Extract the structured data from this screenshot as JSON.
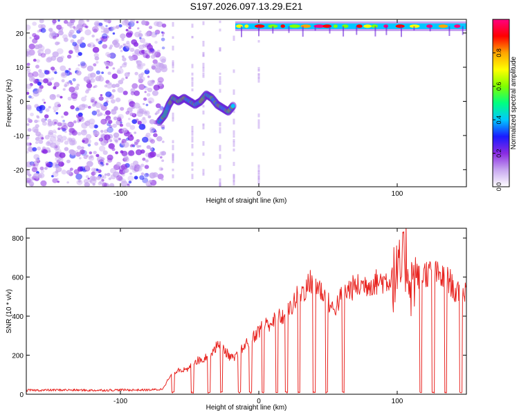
{
  "title": "S197.2026.097.13.29.E21",
  "chart_data": [
    {
      "type": "heatmap",
      "xlabel": "Height of straight line (km)",
      "ylabel": "Frequency (Hz)",
      "xlim": [
        -168,
        150
      ],
      "ylim": [
        -25,
        24
      ],
      "xticks": [
        -100,
        0,
        100
      ],
      "yticks": [
        -20,
        -10,
        0,
        10,
        20
      ],
      "colorbar": {
        "label": "Normalized spectral amplitude",
        "range": [
          0,
          1
        ],
        "ticks": [
          "0.0",
          "0.2",
          "0.4",
          "0.6",
          "0.8"
        ],
        "colors": [
          "#ffffff",
          "#c8a8f0",
          "#8a2be2",
          "#1a1aff",
          "#00c8ff",
          "#00ff80",
          "#80ff00",
          "#ffff00",
          "#ffa500",
          "#ff0000",
          "#ff0080"
        ]
      },
      "features": {
        "noise_region_x": [
          -168,
          -70
        ],
        "tracked_line": {
          "x": [
            -72,
            -68,
            -65,
            -62,
            -58,
            -54,
            -50,
            -46,
            -42,
            -38,
            -34,
            -30,
            -26,
            -22,
            -18
          ],
          "y": [
            -6,
            -4,
            -1,
            1,
            0,
            1,
            0,
            -1,
            0,
            2,
            1,
            -1,
            -2,
            -3,
            -1
          ]
        },
        "upper_band": {
          "x": [
            -17,
            150
          ],
          "y": 22
        }
      }
    },
    {
      "type": "line",
      "xlabel": "Height of straight line (km)",
      "ylabel": "SNR (10 * v/v)",
      "xlim": [
        -168,
        150
      ],
      "ylim": [
        0,
        850
      ],
      "xticks": [
        -100,
        0,
        100
      ],
      "yticks": [
        0,
        200,
        400,
        600,
        800
      ],
      "color": "#e8231f",
      "profile": {
        "x": [
          -168,
          -140,
          -120,
          -100,
          -90,
          -80,
          -70,
          -64,
          -58,
          -52,
          -46,
          -40,
          -34,
          -28,
          -22,
          -18,
          -14,
          -10,
          -6,
          -2,
          2,
          6,
          10,
          14,
          18,
          22,
          26,
          30,
          34,
          38,
          42,
          46,
          50,
          54,
          58,
          62,
          66,
          70,
          76,
          82,
          88,
          94,
          100,
          104,
          106,
          108,
          110,
          112,
          116,
          120,
          126,
          132,
          138,
          142,
          146,
          150
        ],
        "y": [
          20,
          22,
          20,
          22,
          22,
          22,
          25,
          90,
          130,
          120,
          170,
          180,
          220,
          260,
          200,
          180,
          210,
          250,
          280,
          310,
          340,
          360,
          370,
          390,
          400,
          430,
          480,
          520,
          540,
          580,
          560,
          520,
          470,
          430,
          480,
          520,
          540,
          550,
          560,
          570,
          580,
          585,
          600,
          640,
          720,
          650,
          560,
          600,
          610,
          620,
          620,
          600,
          580,
          520,
          510,
          530
        ]
      },
      "dropouts": [
        -62,
        -48,
        -36,
        -27,
        -14,
        -6,
        3,
        13,
        20,
        29,
        40,
        49,
        61,
        117,
        126,
        135,
        146
      ],
      "spike_range_x": [
        96,
        114
      ]
    }
  ]
}
